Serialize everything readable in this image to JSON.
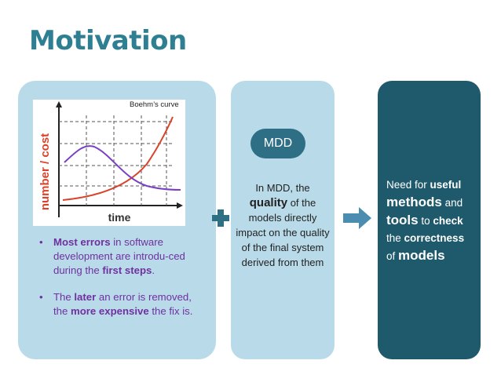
{
  "slide": {
    "title": "Motivation"
  },
  "chart": {
    "caption": "Boehm’s curve",
    "y_axis_label": "number / cost",
    "x_axis_label": "time"
  },
  "bullets": [
    {
      "part1": "Most errors",
      "part2": " in software development are introdu-ced during the ",
      "part3": "first steps",
      "part4": "."
    },
    {
      "part1": "The ",
      "part2": "later",
      "part3": " an error is removed, the ",
      "part4": "more expensive",
      "part5": " the fix is."
    }
  ],
  "mdd": {
    "pill_label": "MDD",
    "line1": "In MDD, the",
    "quality": "quality",
    "line2": " of the models directly impact on the quality of the final system derived from them"
  },
  "need": {
    "t1": "Need for ",
    "useful": "useful",
    "methods": "methods",
    "t2": " and ",
    "tools": "tools",
    "t3": " to ",
    "check": "check",
    "t4": " the ",
    "correctness": "correctness",
    "t5": " of ",
    "models": "models"
  },
  "icons": {
    "plus": "plus-icon",
    "arrow": "right-arrow-icon"
  },
  "colors": {
    "title": "#2f7f93",
    "card_light": "#b9dbe9",
    "card_dark": "#1e5a6b",
    "pill": "#2f6f86",
    "bullet_text": "#7030a0",
    "red_curve": "#d9432a",
    "purple_curve": "#7a3fc2"
  }
}
